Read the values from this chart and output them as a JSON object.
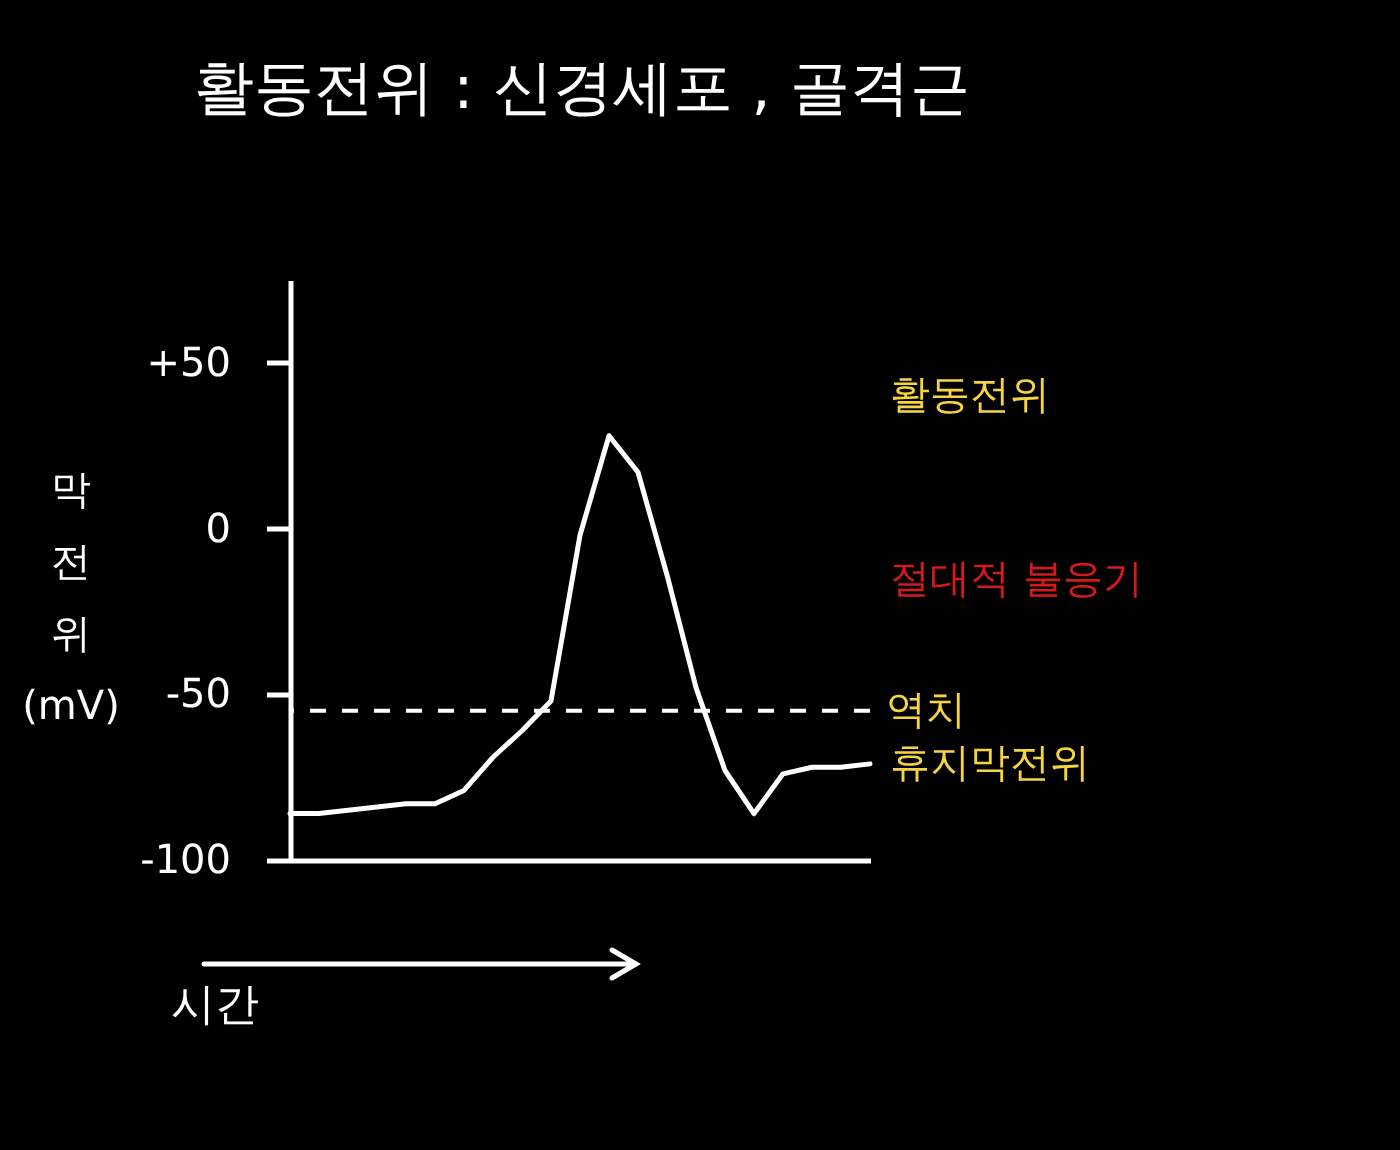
{
  "chart_data": {
    "type": "line",
    "title": "활동전위 : 신경세포 , 골격근",
    "xlabel": "시간",
    "ylabel": "막전위 (mV)",
    "categories": [
      null,
      null,
      null,
      null,
      null,
      null,
      null,
      null,
      null,
      null,
      null,
      null,
      null,
      null,
      null,
      null,
      null,
      null,
      null,
      null,
      null
    ],
    "series": [
      {
        "color": "#ffffff",
        "values": [
          -86,
          -86,
          -85,
          -84,
          -83,
          -83,
          -79,
          -69,
          -61,
          -52,
          -2,
          28,
          17,
          -14,
          -48,
          -73,
          -86,
          -74,
          -72,
          -72,
          -71
        ]
      }
    ],
    "ylim": [
      -100,
      75
    ],
    "yticks": [
      -100,
      -50,
      0,
      {
        "value": 50,
        "label": "+50"
      }
    ],
    "ref_lines": [
      {
        "axis": "y",
        "value": -55,
        "label": "역치",
        "line_style": "dashed",
        "color": "#ffffff"
      }
    ],
    "annotations": [
      "활동전위",
      "절대적 불응기",
      "휴지막전위"
    ],
    "tick_labels": "y",
    "grid": false,
    "marker": "none",
    "line_style": "solid"
  }
}
